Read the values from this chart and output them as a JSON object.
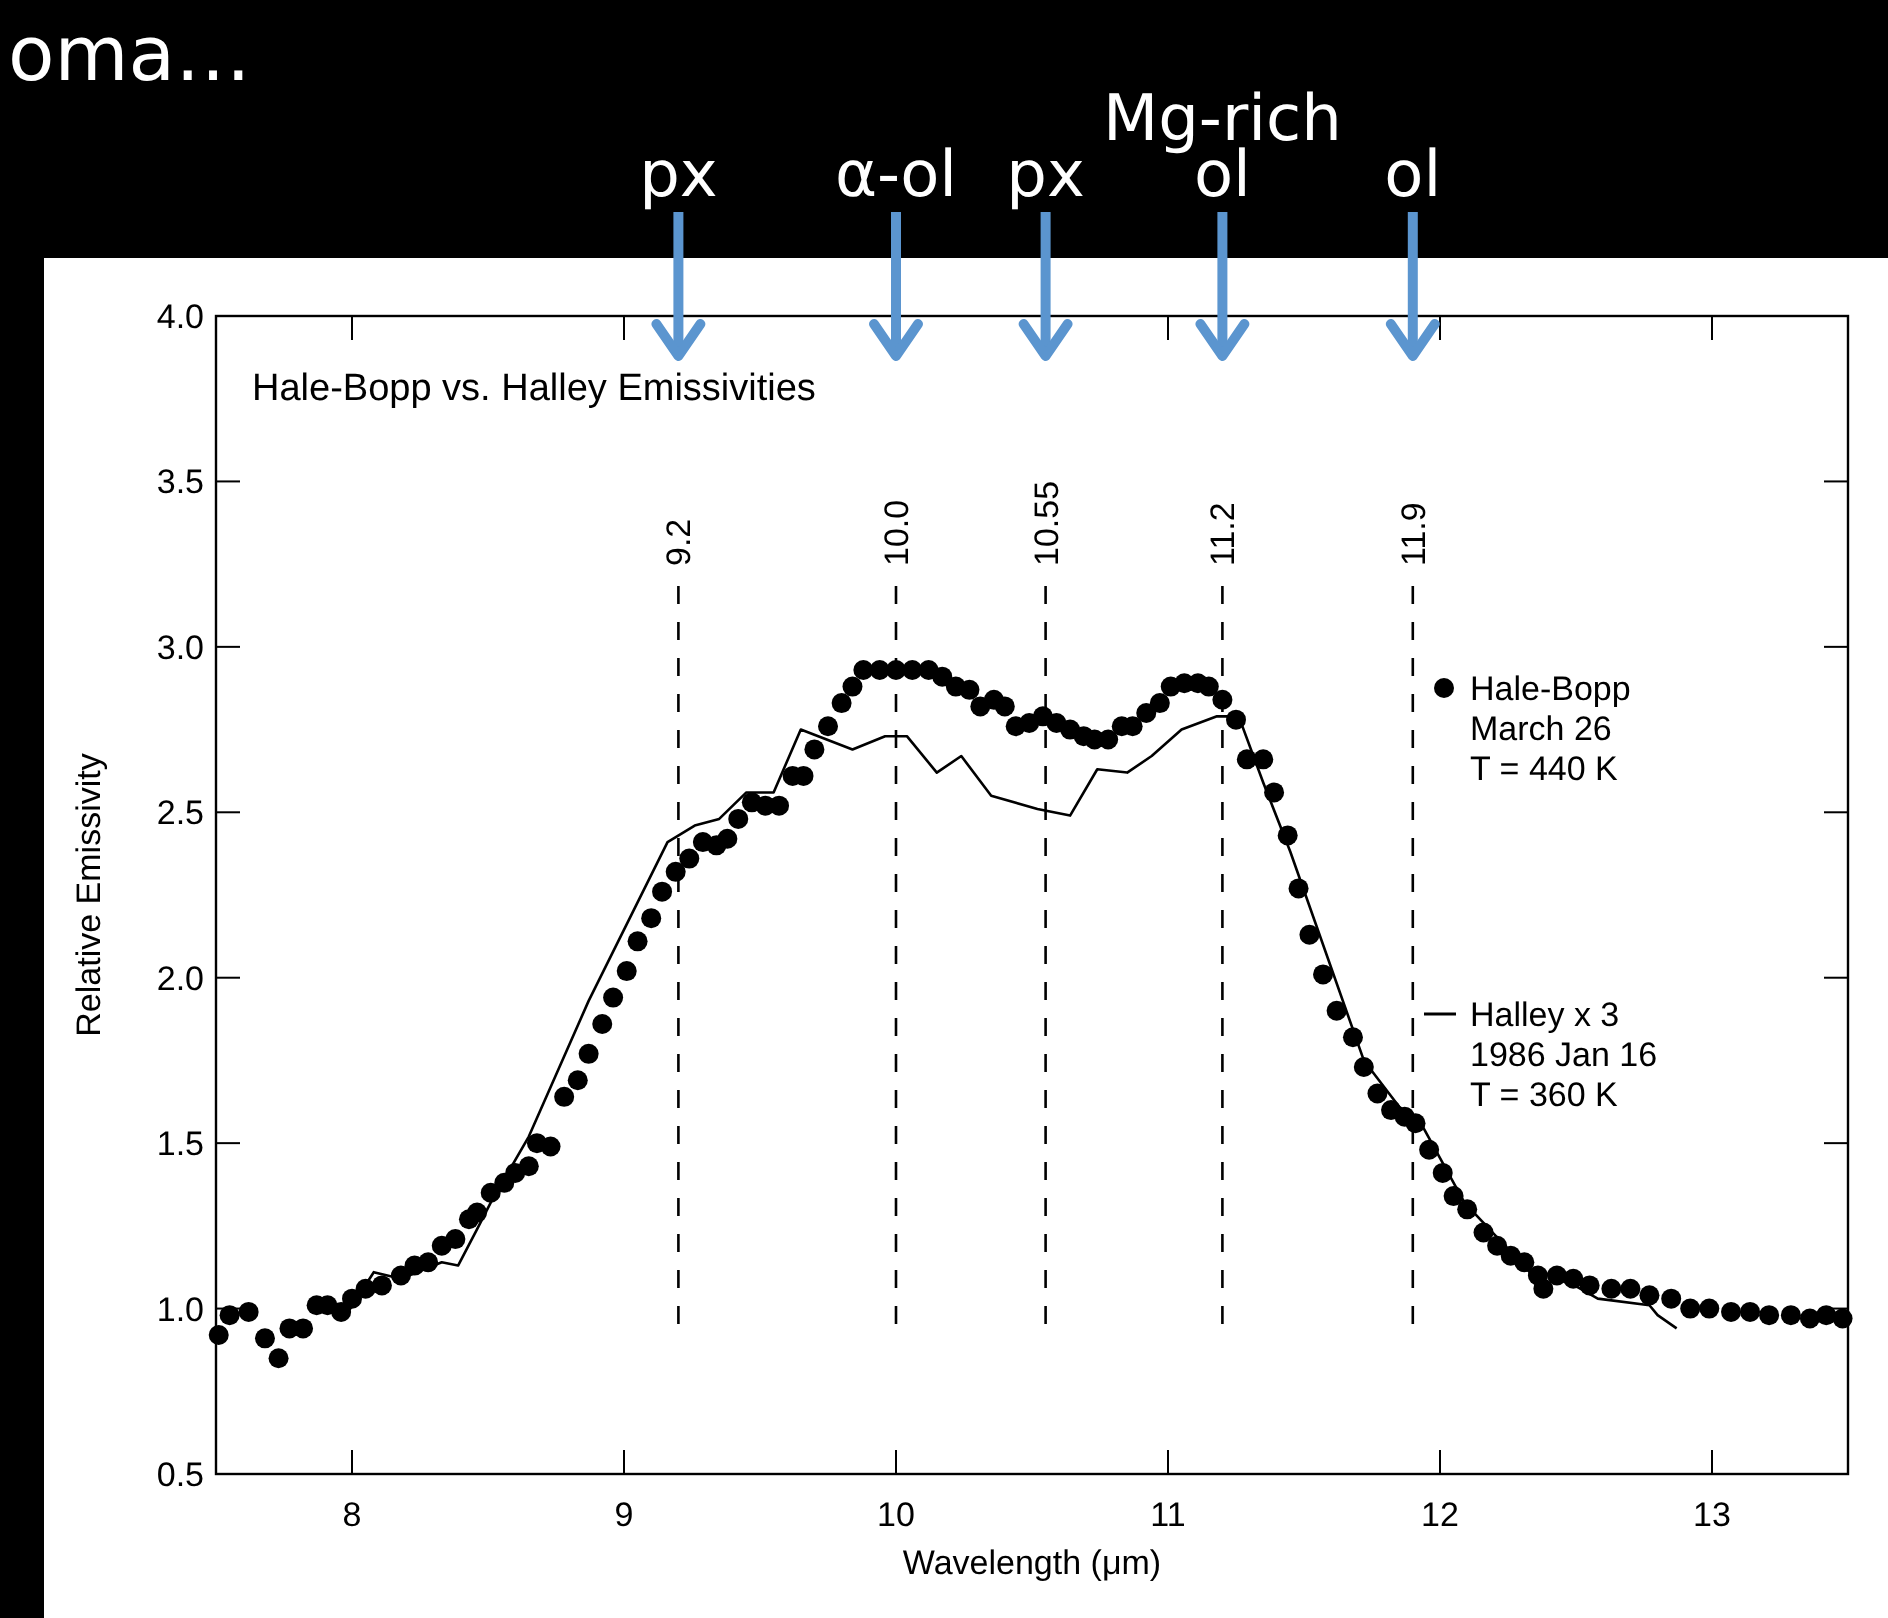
{
  "chart_data": {
    "type": "scatter",
    "title": "Hale-Bopp vs. Halley Emissivities",
    "xlabel": "Wavelength (μm)",
    "ylabel": "Relative Emissivity",
    "legend": "right",
    "xlim": [
      7.5,
      13.5
    ],
    "xticks": [
      8,
      9,
      10,
      11,
      12,
      13
    ],
    "ylim": [
      0.5,
      4.0
    ],
    "yticks": [
      {
        "value": 0.5,
        "label": "0.5"
      },
      {
        "value": 1,
        "label": "1.0"
      },
      {
        "value": 1.5,
        "label": "1.5"
      },
      {
        "value": 2,
        "label": "2.0"
      },
      {
        "value": 2.5,
        "label": "2.5"
      },
      {
        "value": 3,
        "label": "3.0"
      },
      {
        "value": 3.5,
        "label": "3.5"
      },
      {
        "value": 4,
        "label": "4.0"
      }
    ],
    "series": [
      {
        "name": "Hale-Bopp\nMarch 26\nT = 440 K",
        "color": "#000000",
        "x": [
          7.51,
          7.55,
          7.62,
          7.68,
          7.73,
          7.77,
          7.82,
          7.87,
          7.91,
          7.96,
          8.0,
          8.05,
          8.11,
          8.18,
          8.23,
          8.28,
          8.33,
          8.38,
          8.43,
          8.46,
          8.51,
          8.56,
          8.6,
          8.65,
          8.68,
          8.73,
          8.78,
          8.83,
          8.87,
          8.92,
          8.96,
          9.01,
          9.05,
          9.1,
          9.14,
          9.19,
          9.24,
          9.29,
          9.34,
          9.38,
          9.42,
          9.47,
          9.52,
          9.57,
          9.62,
          9.66,
          9.7,
          9.75,
          9.8,
          9.84,
          9.88,
          9.94,
          10.0,
          10.06,
          10.12,
          10.17,
          10.22,
          10.27,
          10.31,
          10.36,
          10.4,
          10.44,
          10.49,
          10.54,
          10.59,
          10.64,
          10.69,
          10.73,
          10.78,
          10.83,
          10.87,
          10.92,
          10.97,
          11.01,
          11.06,
          11.11,
          11.15,
          11.2,
          11.25,
          11.29,
          11.35,
          11.39,
          11.44,
          11.48,
          11.52,
          11.57,
          11.62,
          11.68,
          11.72,
          11.77,
          11.82,
          11.87,
          11.91,
          11.96,
          12.01,
          12.05,
          12.1,
          12.16,
          12.21,
          12.26,
          12.31,
          12.36,
          12.38,
          12.43,
          12.49,
          12.55,
          12.63,
          12.7,
          12.77,
          12.85,
          12.92,
          12.99,
          13.07,
          13.14,
          13.21,
          13.29,
          13.36,
          13.42,
          13.48
        ],
        "values": [
          0.92,
          0.98,
          0.99,
          0.91,
          0.85,
          0.94,
          0.94,
          1.01,
          1.01,
          0.99,
          1.03,
          1.06,
          1.07,
          1.1,
          1.13,
          1.14,
          1.19,
          1.21,
          1.27,
          1.29,
          1.35,
          1.38,
          1.41,
          1.43,
          1.5,
          1.49,
          1.64,
          1.69,
          1.77,
          1.86,
          1.94,
          2.02,
          2.11,
          2.18,
          2.26,
          2.32,
          2.36,
          2.41,
          2.4,
          2.42,
          2.48,
          2.53,
          2.52,
          2.52,
          2.61,
          2.61,
          2.69,
          2.76,
          2.83,
          2.88,
          2.93,
          2.93,
          2.93,
          2.93,
          2.93,
          2.91,
          2.88,
          2.87,
          2.82,
          2.84,
          2.82,
          2.76,
          2.77,
          2.79,
          2.77,
          2.75,
          2.73,
          2.72,
          2.72,
          2.76,
          2.76,
          2.8,
          2.83,
          2.88,
          2.89,
          2.89,
          2.88,
          2.84,
          2.78,
          2.66,
          2.66,
          2.56,
          2.43,
          2.27,
          2.13,
          2.01,
          1.9,
          1.82,
          1.73,
          1.65,
          1.6,
          1.58,
          1.56,
          1.48,
          1.41,
          1.34,
          1.3,
          1.23,
          1.19,
          1.16,
          1.14,
          1.1,
          1.06,
          1.1,
          1.09,
          1.07,
          1.06,
          1.06,
          1.04,
          1.03,
          1.0,
          1.0,
          0.99,
          0.99,
          0.98,
          0.98,
          0.97,
          0.98,
          0.97
        ]
      },
      {
        "name": "Halley x 3\n1986 Jan 16\nT = 360 K",
        "type": "line",
        "color": "#000000",
        "x": [
          7.97,
          8.08,
          8.18,
          8.33,
          8.39,
          8.46,
          8.51,
          8.65,
          8.87,
          9.16,
          9.26,
          9.35,
          9.45,
          9.55,
          9.65,
          9.84,
          9.96,
          10.04,
          10.15,
          10.24,
          10.35,
          10.52,
          10.64,
          10.74,
          10.85,
          10.94,
          11.05,
          11.18,
          11.26,
          11.35,
          11.45,
          11.72,
          11.85,
          11.93,
          12.09,
          12.33,
          12.43,
          12.58,
          12.77,
          12.8,
          12.87
        ],
        "values": [
          0.97,
          1.11,
          1.09,
          1.14,
          1.13,
          1.24,
          1.32,
          1.52,
          1.93,
          2.41,
          2.46,
          2.48,
          2.56,
          2.56,
          2.75,
          2.69,
          2.73,
          2.73,
          2.62,
          2.67,
          2.55,
          2.51,
          2.49,
          2.63,
          2.62,
          2.67,
          2.75,
          2.79,
          2.79,
          2.59,
          2.38,
          1.75,
          1.61,
          1.56,
          1.32,
          1.11,
          1.1,
          1.03,
          1.01,
          0.98,
          0.94
        ]
      }
    ],
    "ref_lines": [
      {
        "axis": "x",
        "value": 9.2,
        "label": "9.2",
        "line_style": "dashed"
      },
      {
        "axis": "x",
        "value": 10.0,
        "label": "10.0",
        "line_style": "dashed"
      },
      {
        "axis": "x",
        "value": 10.55,
        "label": "10.55",
        "line_style": "dashed"
      },
      {
        "axis": "x",
        "value": 11.2,
        "label": "11.2",
        "line_style": "dashed"
      },
      {
        "axis": "x",
        "value": 11.9,
        "label": "11.9",
        "line_style": "dashed"
      }
    ],
    "annotations": [
      "oma…",
      {
        "text": "px",
        "x": 9.2
      },
      {
        "text": "α-ol",
        "x": 10.0
      },
      {
        "text": "px",
        "x": 10.55
      },
      {
        "text": "Mg-rich\nol",
        "x": 11.2
      },
      {
        "text": "ol",
        "x": 11.9
      }
    ]
  }
}
